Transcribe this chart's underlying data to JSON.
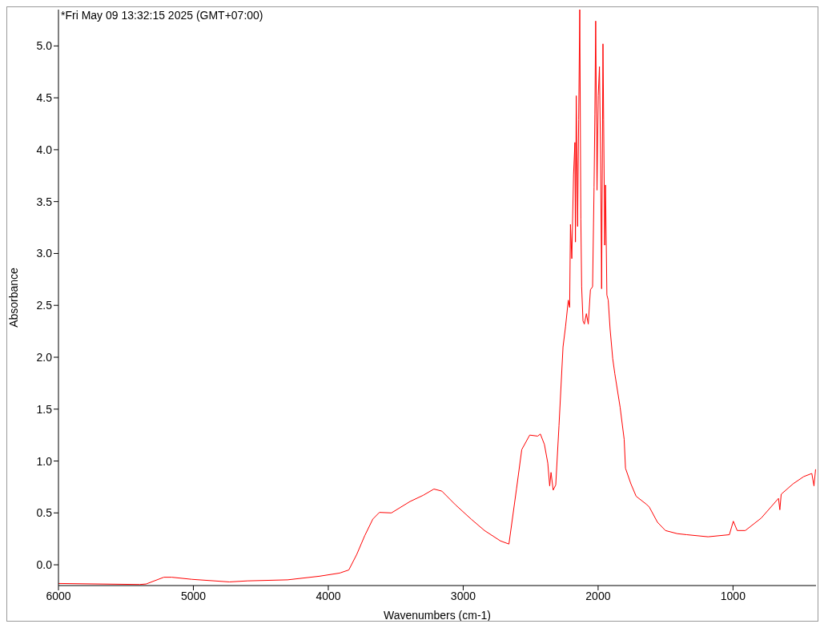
{
  "chart_data": {
    "type": "line",
    "xlabel": "Wavenumbers (cm-1)",
    "ylabel": "Absorbance",
    "annotations": [
      "*Fri May 09 13:32:15 2025 (GMT+07:00)"
    ],
    "x": [
      6000,
      5397,
      5350,
      5219,
      5160,
      5012,
      4734,
      4598,
      4302,
      4065,
      3917,
      3907,
      3848,
      3789,
      3730,
      3670,
      3621,
      3532,
      3394,
      3296,
      3217,
      3158,
      3059,
      2941,
      2842,
      2724,
      2661,
      2605,
      2566,
      2507,
      2448,
      2428,
      2398,
      2373,
      2359,
      2349,
      2333,
      2314,
      2290,
      2260,
      2241,
      2221,
      2211,
      2205,
      2195,
      2182,
      2172,
      2168,
      2162,
      2152,
      2144,
      2136,
      2128,
      2122,
      2112,
      2102,
      2087,
      2073,
      2057,
      2041,
      2030,
      2024,
      2018,
      2008,
      1999,
      1990,
      1982,
      1974,
      1964,
      1959,
      1951,
      1945,
      1935,
      1925,
      1911,
      1892,
      1876,
      1837,
      1807,
      1797,
      1757,
      1718,
      1639,
      1620,
      1560,
      1501,
      1413,
      1343,
      1185,
      1027,
      998,
      969,
      909,
      791,
      663,
      653,
      643,
      555,
      476,
      416,
      400,
      388
    ],
    "series": [
      {
        "color": "#ff0000",
        "values": [
          -0.18,
          -0.19,
          -0.185,
          -0.12,
          -0.12,
          -0.14,
          -0.165,
          -0.155,
          -0.145,
          -0.11,
          -0.08,
          -0.076,
          -0.05,
          0.1,
          0.28,
          0.44,
          0.505,
          0.5,
          0.61,
          0.67,
          0.73,
          0.71,
          0.58,
          0.44,
          0.33,
          0.23,
          0.2,
          0.73,
          1.11,
          1.25,
          1.24,
          1.26,
          1.16,
          0.98,
          0.76,
          0.89,
          0.72,
          0.77,
          1.34,
          2.1,
          2.3,
          2.55,
          2.48,
          3.28,
          2.95,
          3.76,
          4.07,
          3.11,
          4.52,
          3.26,
          4.29,
          5.35,
          3.33,
          2.68,
          2.35,
          2.32,
          2.42,
          2.32,
          2.65,
          2.68,
          3.64,
          4.34,
          5.24,
          3.61,
          4.52,
          4.8,
          3.96,
          2.66,
          5.02,
          4.29,
          3.08,
          3.66,
          2.6,
          2.55,
          2.27,
          1.99,
          1.84,
          1.52,
          1.21,
          0.93,
          0.78,
          0.66,
          0.58,
          0.555,
          0.41,
          0.33,
          0.3,
          0.29,
          0.27,
          0.29,
          0.42,
          0.33,
          0.33,
          0.45,
          0.64,
          0.53,
          0.68,
          0.78,
          0.85,
          0.88,
          0.76,
          0.92
        ]
      }
    ],
    "xlim": [
      6000,
      385
    ],
    "xticks": [
      6000,
      5000,
      4000,
      3000,
      2000,
      1000
    ],
    "ylim": [
      -0.2,
      5.35
    ],
    "yticks": [
      {
        "value": 0,
        "label": "0.0"
      },
      {
        "value": 0.5,
        "label": "0.5"
      },
      {
        "value": 1,
        "label": "1.0"
      },
      {
        "value": 1.5,
        "label": "1.5"
      },
      {
        "value": 2,
        "label": "2.0"
      },
      {
        "value": 2.5,
        "label": "2.5"
      },
      {
        "value": 3,
        "label": "3.0"
      },
      {
        "value": 3.5,
        "label": "3.5"
      },
      {
        "value": 4,
        "label": "4.0"
      },
      {
        "value": 4.5,
        "label": "4.5"
      },
      {
        "value": 5,
        "label": "5.0"
      }
    ],
    "grid": false,
    "marker": "none",
    "line_style": "solid"
  }
}
